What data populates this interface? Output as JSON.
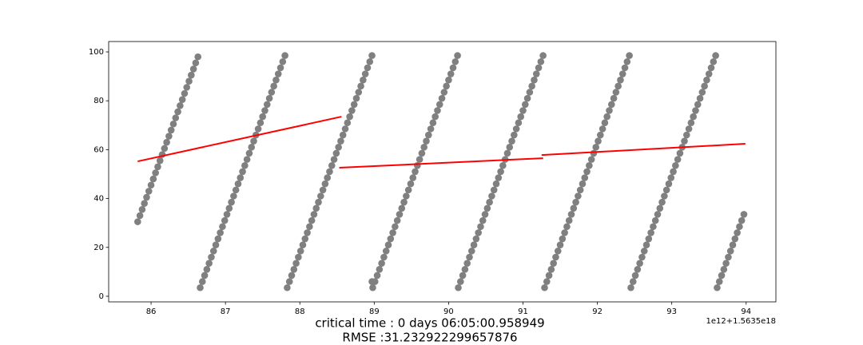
{
  "chart_data": {
    "type": "scatter",
    "xlim": [
      85.43,
      94.4
    ],
    "ylim": [
      -2.3,
      104.25
    ],
    "xticks": [
      86,
      87,
      88,
      89,
      90,
      91,
      92,
      93,
      94
    ],
    "yticks": [
      0,
      20,
      40,
      60,
      80,
      100
    ],
    "x_offset_label": "1e12+1.5635e18",
    "caption": [
      "critical time : 0 days 06:05:00.958949",
      "RMSE :31.232922299657876"
    ],
    "series": [
      {
        "kind": "scatter",
        "color": "#808080",
        "x": [
          85.82,
          85.85,
          85.88,
          85.91,
          85.94,
          85.97,
          86.0,
          86.03,
          86.06,
          86.09,
          86.12,
          86.15,
          86.18,
          86.21,
          86.24,
          86.27,
          86.3,
          86.33,
          86.36,
          86.39,
          86.42,
          86.45,
          86.48,
          86.51,
          86.54,
          86.57,
          86.6,
          86.63
        ],
        "y": [
          30.5,
          33,
          35.5,
          38,
          40.5,
          43,
          45.5,
          48,
          50.5,
          53,
          55.5,
          58,
          60.5,
          63,
          65.5,
          68,
          70.5,
          73,
          75.5,
          78,
          80.5,
          83,
          85.5,
          88,
          90.5,
          93,
          95.5,
          98
        ]
      },
      {
        "kind": "scatter",
        "color": "#808080",
        "x": [
          86.66,
          86.69,
          86.72,
          86.75,
          86.78,
          86.81,
          86.84,
          86.87,
          86.9,
          86.93,
          86.96,
          86.99,
          87.02,
          87.05,
          87.08,
          87.11,
          87.14,
          87.17,
          87.2,
          87.23,
          87.26,
          87.29,
          87.32,
          87.35,
          87.38,
          87.41,
          87.44,
          87.47,
          87.5,
          87.53,
          87.56,
          87.59,
          87.62,
          87.65,
          87.68,
          87.71,
          87.74,
          87.77,
          87.8
        ],
        "y": [
          3.5,
          6,
          8.5,
          11,
          13.5,
          16,
          18.5,
          21,
          23.5,
          26,
          28.5,
          31,
          33.5,
          36,
          38.5,
          41,
          43.5,
          46,
          48.5,
          51,
          53.5,
          56,
          58.5,
          61,
          63.5,
          66,
          68.5,
          71,
          73.5,
          76,
          78.5,
          81,
          83.5,
          86,
          88.5,
          91,
          93.5,
          96,
          98.5
        ]
      },
      {
        "kind": "scatter",
        "color": "#808080",
        "x": [
          87.83,
          87.86,
          87.89,
          87.92,
          87.95,
          87.98,
          88.01,
          88.04,
          88.07,
          88.1,
          88.13,
          88.16,
          88.19,
          88.22,
          88.25,
          88.28,
          88.31,
          88.34,
          88.37,
          88.4,
          88.43,
          88.46,
          88.49,
          88.52,
          88.55,
          88.58,
          88.61,
          88.64,
          88.67,
          88.7,
          88.73,
          88.76,
          88.79,
          88.82,
          88.85,
          88.88,
          88.91,
          88.94,
          88.97
        ],
        "y": [
          3.5,
          6,
          8.5,
          11,
          13.5,
          16,
          18.5,
          21,
          23.5,
          26,
          28.5,
          31,
          33.5,
          36,
          38.5,
          41,
          43.5,
          46,
          48.5,
          51,
          53.5,
          56,
          58.5,
          61,
          63.5,
          66,
          68.5,
          71,
          73.5,
          76,
          78.5,
          81,
          83.5,
          86,
          88.5,
          91,
          93.5,
          96,
          98.5
        ]
      },
      {
        "kind": "scatter",
        "color": "#808080",
        "x": [
          88.97,
          88.98,
          89.01,
          89.04,
          89.07,
          89.1,
          89.13,
          89.16,
          89.19,
          89.22,
          89.25,
          89.28,
          89.31,
          89.34,
          89.37,
          89.4,
          89.43,
          89.46,
          89.49,
          89.52,
          89.55,
          89.58,
          89.61,
          89.64,
          89.67,
          89.7,
          89.73,
          89.76,
          89.79,
          89.82,
          89.85,
          89.88,
          89.91,
          89.94,
          89.97,
          90.0,
          90.03,
          90.06,
          90.09,
          90.12
        ],
        "y": [
          6,
          3.5,
          6,
          8.5,
          11,
          13.5,
          16,
          18.5,
          21,
          23.5,
          26,
          28.5,
          31,
          33.5,
          36,
          38.5,
          41,
          43.5,
          46,
          48.5,
          51,
          53.5,
          56,
          58.5,
          61,
          63.5,
          66,
          68.5,
          71,
          73.5,
          76,
          78.5,
          81,
          83.5,
          86,
          88.5,
          91,
          93.5,
          96,
          98.5
        ]
      },
      {
        "kind": "scatter",
        "color": "#808080",
        "x": [
          90.13,
          90.16,
          90.19,
          90.22,
          90.25,
          90.28,
          90.31,
          90.34,
          90.37,
          90.4,
          90.43,
          90.46,
          90.49,
          90.52,
          90.55,
          90.58,
          90.61,
          90.64,
          90.67,
          90.7,
          90.73,
          90.76,
          90.79,
          90.82,
          90.85,
          90.88,
          90.91,
          90.94,
          90.97,
          91.0,
          91.03,
          91.06,
          91.09,
          91.12,
          91.15,
          91.18,
          91.21,
          91.24,
          91.27
        ],
        "y": [
          3.5,
          6,
          8.5,
          11,
          13.5,
          16,
          18.5,
          21,
          23.5,
          26,
          28.5,
          31,
          33.5,
          36,
          38.5,
          41,
          43.5,
          46,
          48.5,
          51,
          53.5,
          56,
          58.5,
          61,
          63.5,
          66,
          68.5,
          71,
          73.5,
          76,
          78.5,
          81,
          83.5,
          86,
          88.5,
          91,
          93.5,
          96,
          98.5
        ]
      },
      {
        "kind": "scatter",
        "color": "#808080",
        "x": [
          91.29,
          91.32,
          91.35,
          91.38,
          91.41,
          91.44,
          91.47,
          91.5,
          91.53,
          91.56,
          91.59,
          91.62,
          91.65,
          91.68,
          91.71,
          91.74,
          91.77,
          91.8,
          91.83,
          91.86,
          91.89,
          91.92,
          91.95,
          91.98,
          92.01,
          92.04,
          92.07,
          92.1,
          92.13,
          92.16,
          92.19,
          92.22,
          92.25,
          92.28,
          92.31,
          92.34,
          92.37,
          92.4,
          92.43
        ],
        "y": [
          3.5,
          6,
          8.5,
          11,
          13.5,
          16,
          18.5,
          21,
          23.5,
          26,
          28.5,
          31,
          33.5,
          36,
          38.5,
          41,
          43.5,
          46,
          48.5,
          51,
          53.5,
          56,
          58.5,
          61,
          63.5,
          66,
          68.5,
          71,
          73.5,
          76,
          78.5,
          81,
          83.5,
          86,
          88.5,
          91,
          93.5,
          96,
          98.5
        ]
      },
      {
        "kind": "scatter",
        "color": "#808080",
        "x": [
          92.45,
          92.48,
          92.51,
          92.54,
          92.57,
          92.6,
          92.63,
          92.66,
          92.69,
          92.72,
          92.75,
          92.78,
          92.81,
          92.84,
          92.87,
          92.9,
          92.93,
          92.96,
          92.99,
          93.02,
          93.05,
          93.08,
          93.11,
          93.14,
          93.17,
          93.2,
          93.23,
          93.26,
          93.29,
          93.32,
          93.35,
          93.38,
          93.41,
          93.44,
          93.47,
          93.5,
          93.53,
          93.56,
          93.59
        ],
        "y": [
          3.5,
          6,
          8.5,
          11,
          13.5,
          16,
          18.5,
          21,
          23.5,
          26,
          28.5,
          31,
          33.5,
          36,
          38.5,
          41,
          43.5,
          46,
          48.5,
          51,
          53.5,
          56,
          58.5,
          61,
          63.5,
          66,
          68.5,
          71,
          73.5,
          76,
          78.5,
          81,
          83.5,
          86,
          88.5,
          91,
          93.5,
          96,
          98.5
        ]
      },
      {
        "kind": "scatter",
        "color": "#808080",
        "x": [
          93.61,
          93.64,
          93.67,
          93.7,
          93.73,
          93.76,
          93.79,
          93.82,
          93.85,
          93.88,
          93.91,
          93.94,
          93.97
        ],
        "y": [
          3.5,
          6,
          8.5,
          11,
          13.5,
          16,
          18.5,
          21,
          23.5,
          26,
          28.5,
          31,
          33.5
        ]
      },
      {
        "kind": "line",
        "color": "#ff0000",
        "x": [
          85.82,
          88.56
        ],
        "y": [
          55.2,
          73.5
        ]
      },
      {
        "kind": "line",
        "color": "#ff0000",
        "x": [
          88.53,
          91.27
        ],
        "y": [
          52.6,
          56.5
        ]
      },
      {
        "kind": "line",
        "color": "#ff0000",
        "x": [
          91.25,
          93.99
        ],
        "y": [
          57.8,
          62.4
        ]
      }
    ]
  }
}
